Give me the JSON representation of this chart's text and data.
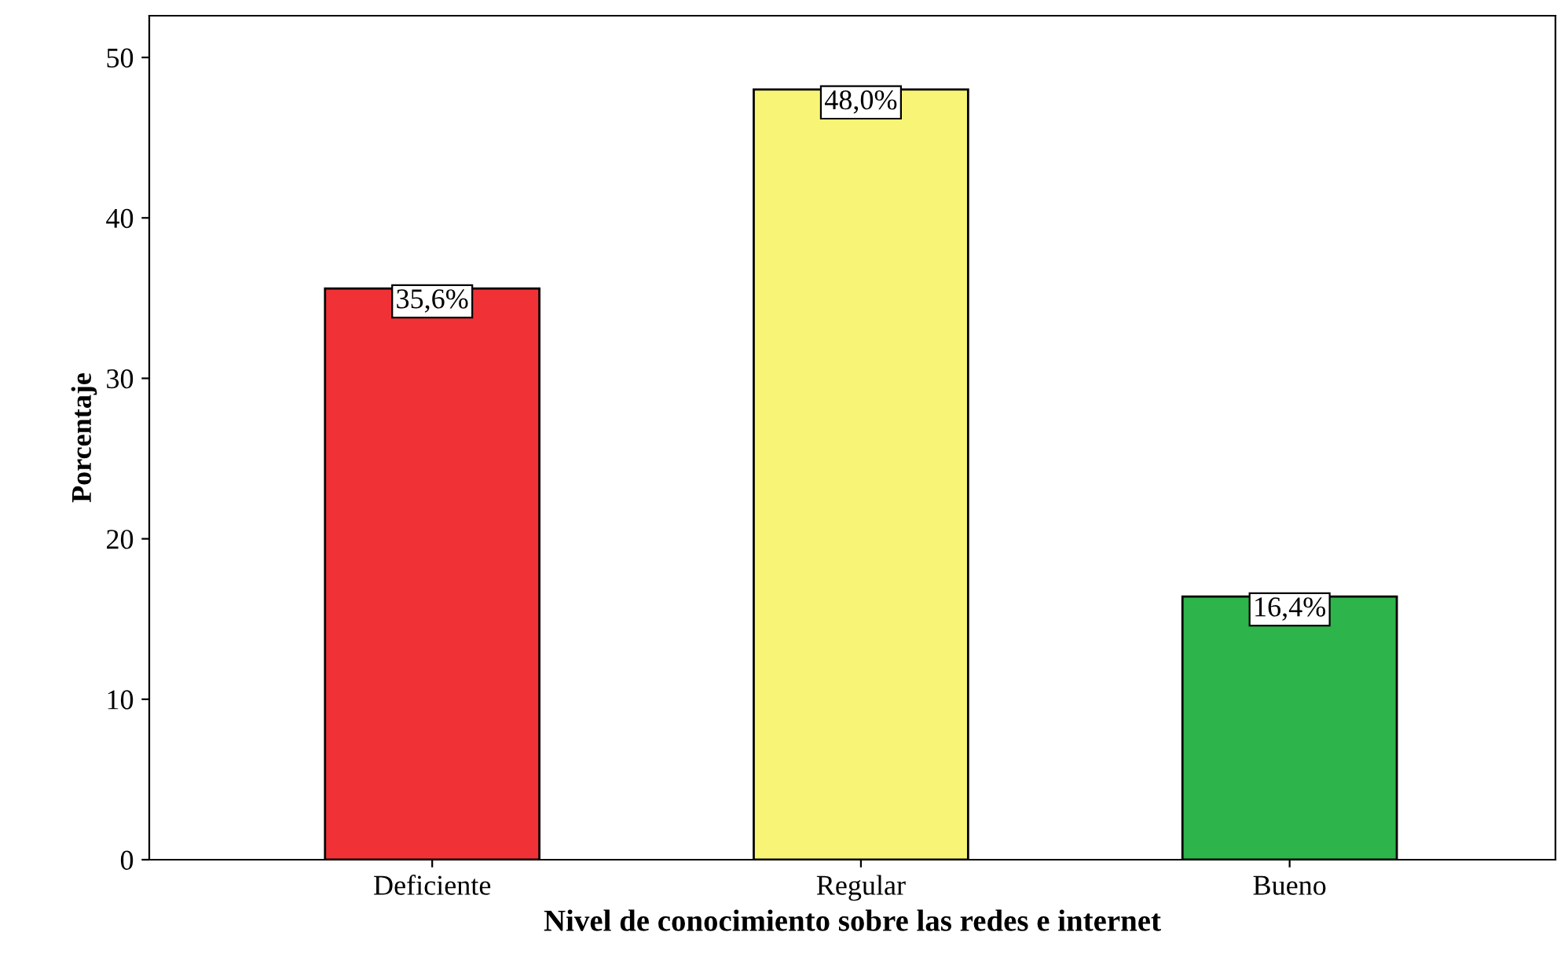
{
  "chart_data": {
    "type": "bar",
    "xlabel": "Nivel de conocimiento sobre las redes e internet",
    "ylabel": "Porcentaje",
    "categories": [
      "Deficiente",
      "Regular",
      "Bueno"
    ],
    "values": [
      35.6,
      48.0,
      16.4
    ],
    "colors": [
      "#f03237",
      "#f8f576",
      "#2db44a"
    ],
    "value_labels": [
      "35,6%",
      "48,0%",
      "16,4%"
    ],
    "ylim": [
      0,
      52.6
    ],
    "yticks": [
      0,
      10,
      20,
      30,
      40,
      50
    ],
    "grid": false,
    "legend": false
  }
}
